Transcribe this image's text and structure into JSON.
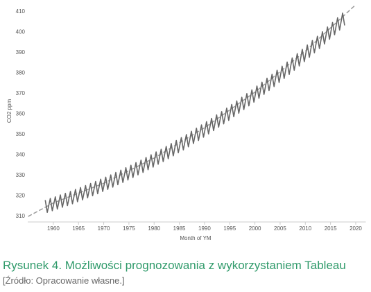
{
  "chart_data": {
    "type": "line",
    "y_label": "CO2 ppm",
    "x_label": "Month of YM",
    "xlim": [
      1953,
      2022
    ],
    "ylim": [
      308,
      414
    ],
    "xticks": [
      1960,
      1965,
      1970,
      1975,
      1980,
      1985,
      1990,
      1995,
      2000,
      2005,
      2010,
      2015,
      2020
    ],
    "yticks": [
      310,
      320,
      330,
      340,
      350,
      360,
      370,
      380,
      390,
      400,
      410
    ],
    "grid": false,
    "series": [
      {
        "color": "#9b9b9b",
        "style": "dashed",
        "x": [
          1955,
          1960,
          1970,
          1980,
          1990,
          2000,
          2010,
          2020
        ],
        "values": [
          310.0,
          316.6,
          326.2,
          338.5,
          353.3,
          370.7,
          390.7,
          413.4
        ]
      },
      {
        "color": "#666666",
        "style": "solid",
        "x": [
          1958.4,
          1958.8,
          1959.4,
          1959.8,
          1960.4,
          1960.8,
          1961.4,
          1961.8,
          1962.4,
          1962.8,
          1963.4,
          1963.8,
          1964.4,
          1964.8,
          1965.4,
          1965.8,
          1966.4,
          1966.8,
          1967.4,
          1967.8,
          1968.4,
          1968.8,
          1969.4,
          1969.8,
          1970.4,
          1970.8,
          1971.4,
          1971.8,
          1972.4,
          1972.8,
          1973.4,
          1973.8,
          1974.4,
          1974.8,
          1975.4,
          1975.8,
          1976.4,
          1976.8,
          1977.4,
          1977.8,
          1978.4,
          1978.8,
          1979.4,
          1979.8,
          1980.4,
          1980.8,
          1981.4,
          1981.8,
          1982.4,
          1982.8,
          1983.4,
          1983.8,
          1984.4,
          1984.8,
          1985.4,
          1985.8,
          1986.4,
          1986.8,
          1987.4,
          1987.8,
          1988.4,
          1988.8,
          1989.4,
          1989.8,
          1990.4,
          1990.8,
          1991.4,
          1991.8,
          1992.4,
          1992.8,
          1993.4,
          1993.8,
          1994.4,
          1994.8,
          1995.4,
          1995.8,
          1996.4,
          1996.8,
          1997.4,
          1997.8,
          1998.4,
          1998.8,
          1999.4,
          1999.8,
          2000.4,
          2000.8,
          2001.4,
          2001.8,
          2002.4,
          2002.8,
          2003.4,
          2003.8,
          2004.4,
          2004.8,
          2005.4,
          2005.8,
          2006.4,
          2006.8,
          2007.4,
          2007.8,
          2008.4,
          2008.8,
          2009.4,
          2009.8,
          2010.4,
          2010.8,
          2011.4,
          2011.8,
          2012.4,
          2012.8,
          2013.4,
          2013.8,
          2014.4,
          2014.8,
          2015.4,
          2015.8,
          2016.4,
          2016.8,
          2017.4,
          2017.8
        ],
        "values": [
          318.0,
          312.0,
          318.8,
          312.8,
          319.6,
          313.6,
          320.5,
          314.5,
          321.3,
          315.3,
          322.2,
          316.2,
          323.2,
          317.2,
          324.1,
          318.1,
          325.1,
          319.1,
          326.1,
          320.1,
          327.1,
          321.1,
          328.2,
          322.2,
          329.2,
          323.2,
          330.3,
          324.3,
          331.5,
          325.5,
          332.6,
          326.6,
          333.8,
          327.8,
          335.0,
          329.0,
          336.3,
          330.3,
          337.5,
          331.5,
          338.8,
          332.8,
          340.1,
          334.1,
          341.5,
          335.5,
          342.8,
          336.8,
          344.2,
          338.2,
          345.6,
          339.6,
          347.1,
          341.1,
          348.5,
          342.5,
          350.0,
          344.0,
          351.6,
          345.6,
          353.1,
          347.1,
          354.7,
          348.7,
          356.3,
          350.3,
          357.9,
          351.9,
          359.6,
          353.6,
          361.2,
          355.2,
          362.9,
          356.9,
          364.7,
          358.7,
          366.4,
          360.4,
          368.2,
          362.2,
          370.0,
          364.0,
          371.8,
          365.8,
          373.7,
          367.7,
          375.6,
          369.6,
          377.5,
          371.5,
          379.4,
          373.4,
          381.4,
          375.4,
          383.4,
          377.4,
          385.4,
          379.4,
          387.4,
          381.4,
          389.5,
          383.5,
          391.6,
          385.6,
          393.7,
          387.7,
          395.9,
          389.9,
          398.0,
          392.0,
          400.2,
          394.2,
          402.5,
          396.5,
          404.7,
          398.7,
          407.0,
          401.0,
          409.3,
          403.3
        ]
      }
    ]
  },
  "caption": {
    "title": "Rysunek 4. Możliwości prognozowania z wykorzystaniem Tableau",
    "source": "[Źródło: Opracowanie własne.]"
  }
}
